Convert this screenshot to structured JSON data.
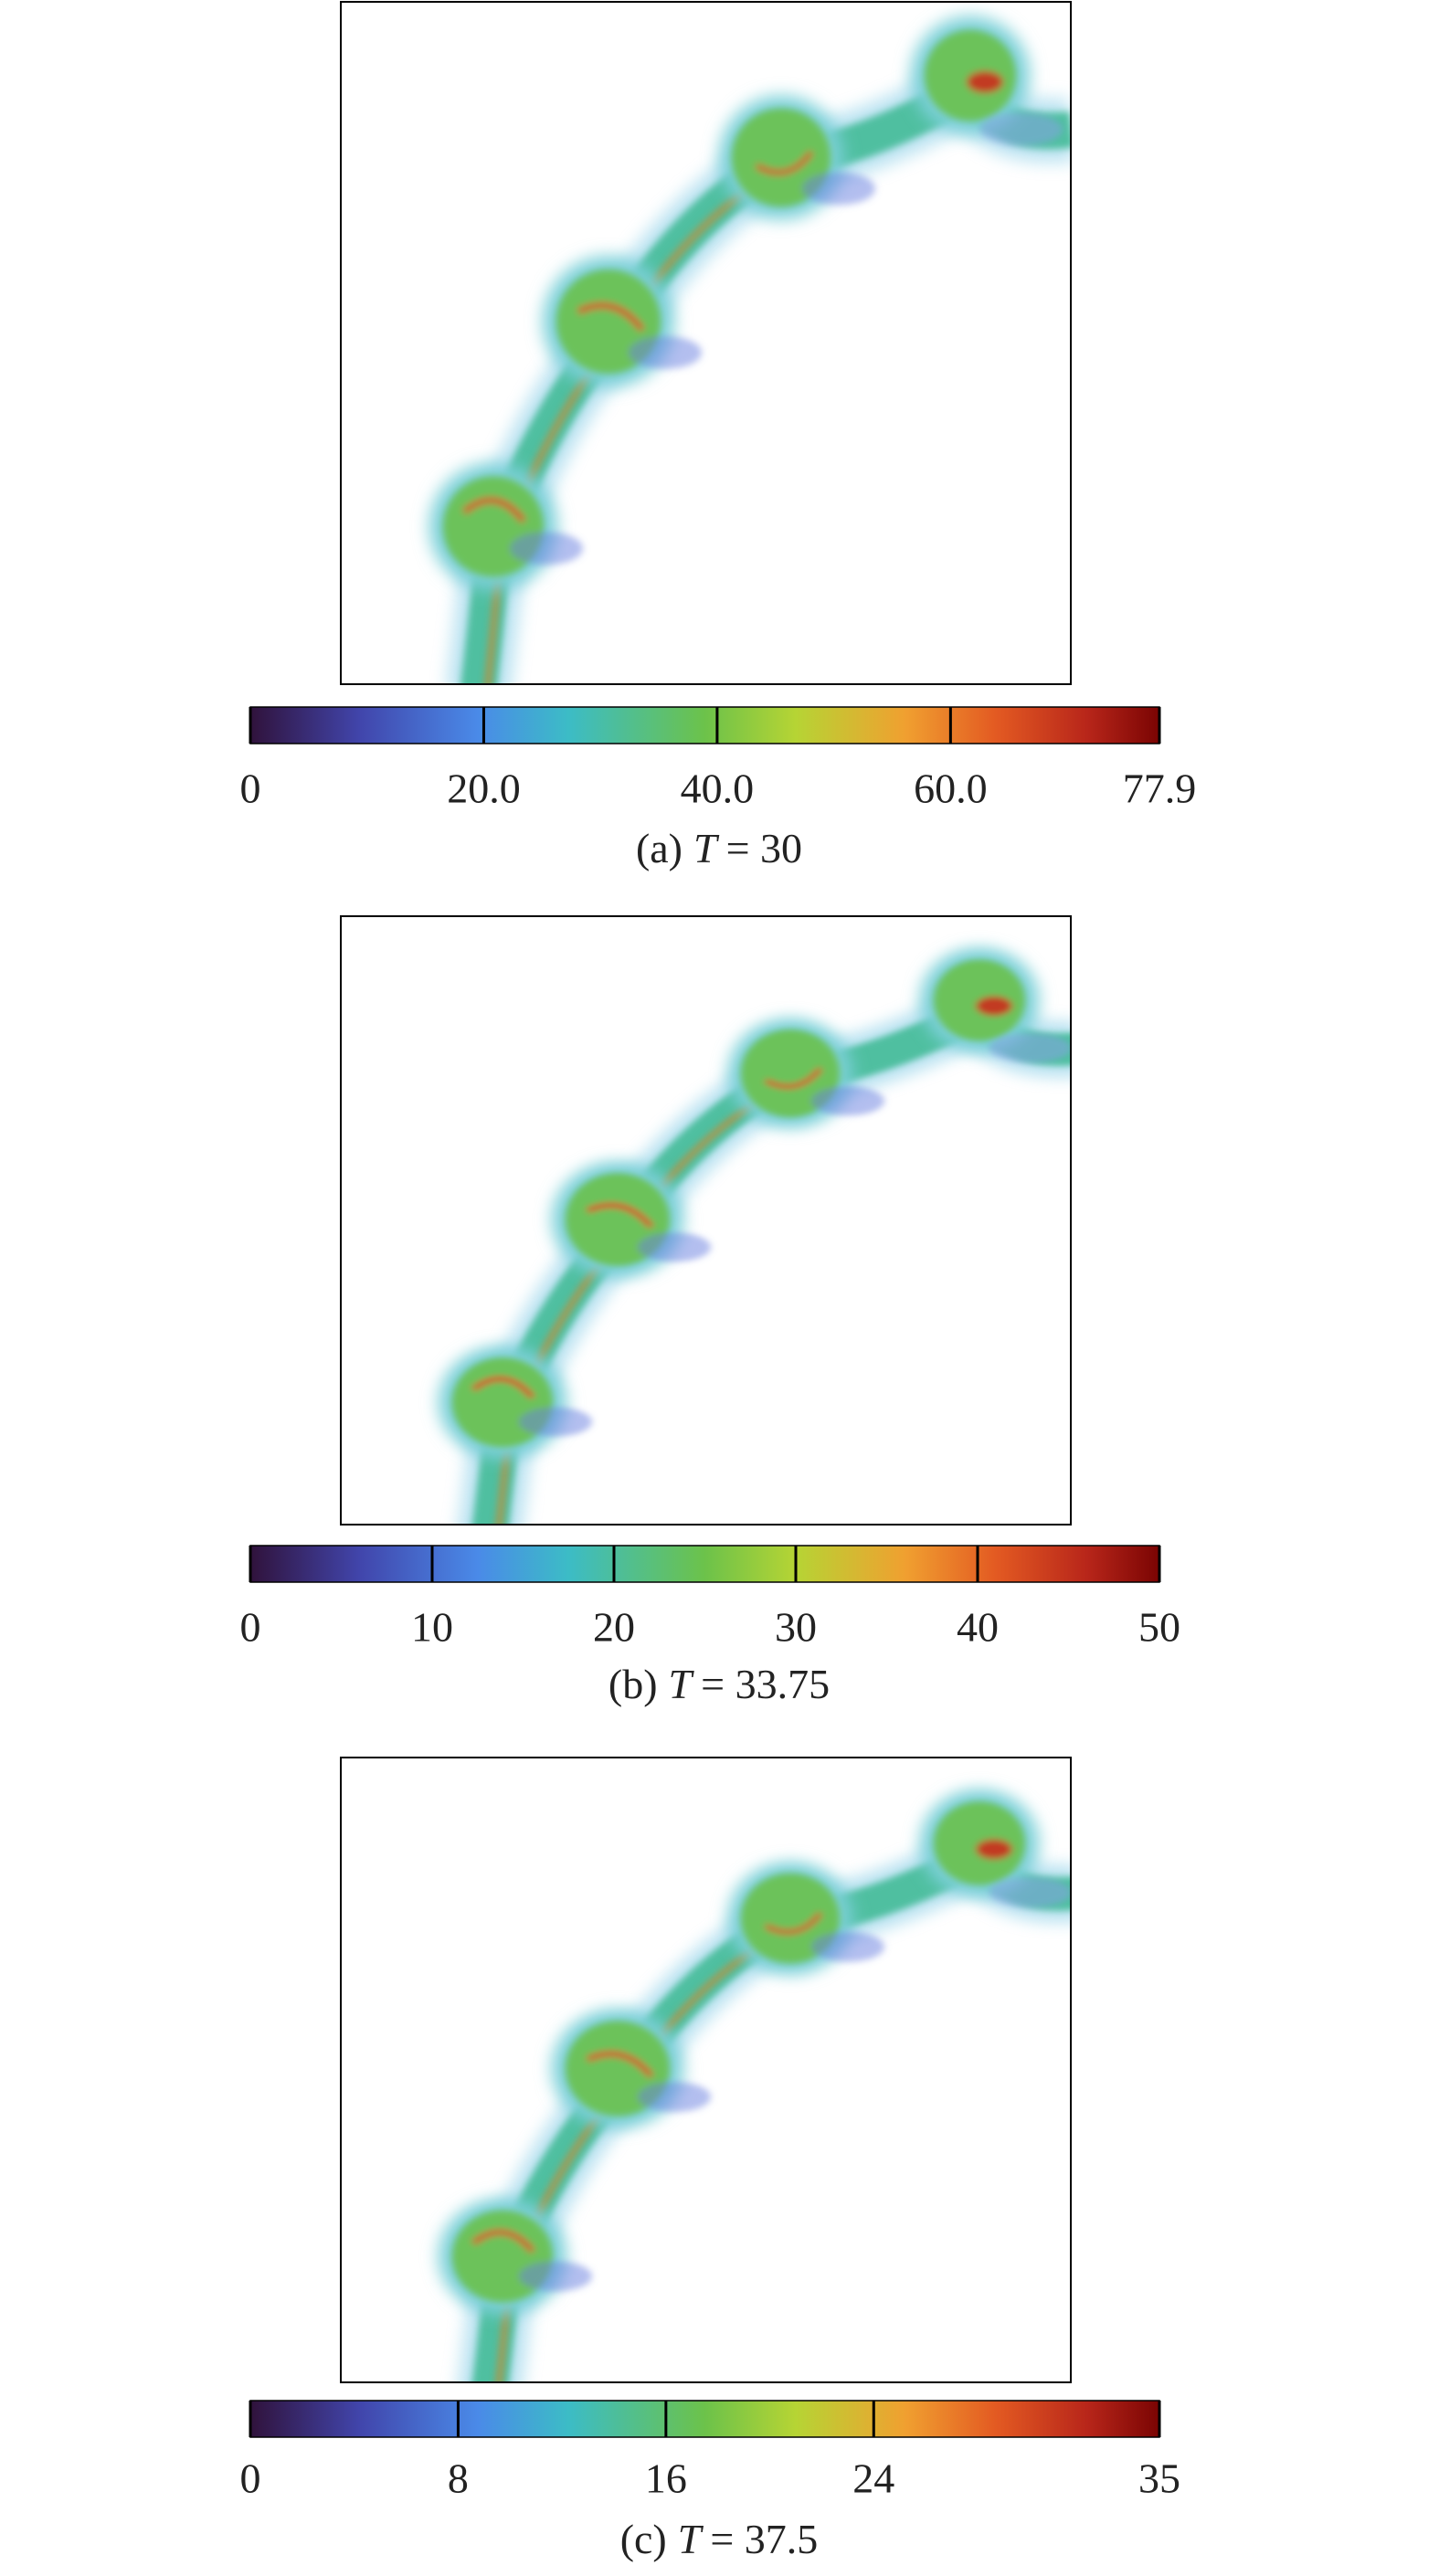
{
  "panels": [
    {
      "caption": {
        "prefix": "(a)",
        "var": "T",
        "rest": "= 30"
      },
      "colorbar": {
        "lim": [
          0,
          77.9
        ],
        "ticks": [
          0,
          {
            "value": 20,
            "label": "20.0"
          },
          {
            "value": 40,
            "label": "40.0"
          },
          {
            "value": 60,
            "label": "60.0"
          },
          77.9
        ]
      }
    },
    {
      "caption": {
        "prefix": "(b)",
        "var": "T",
        "rest": "= 33.75"
      },
      "colorbar": {
        "lim": [
          0,
          50
        ],
        "ticks": [
          0,
          10,
          20,
          30,
          40,
          50
        ]
      }
    },
    {
      "caption": {
        "prefix": "(c)",
        "var": "T",
        "rest": "= 37.5"
      },
      "colorbar": {
        "lim": [
          0,
          35
        ],
        "ticks": [
          0,
          8,
          16,
          24,
          35
        ]
      }
    }
  ]
}
